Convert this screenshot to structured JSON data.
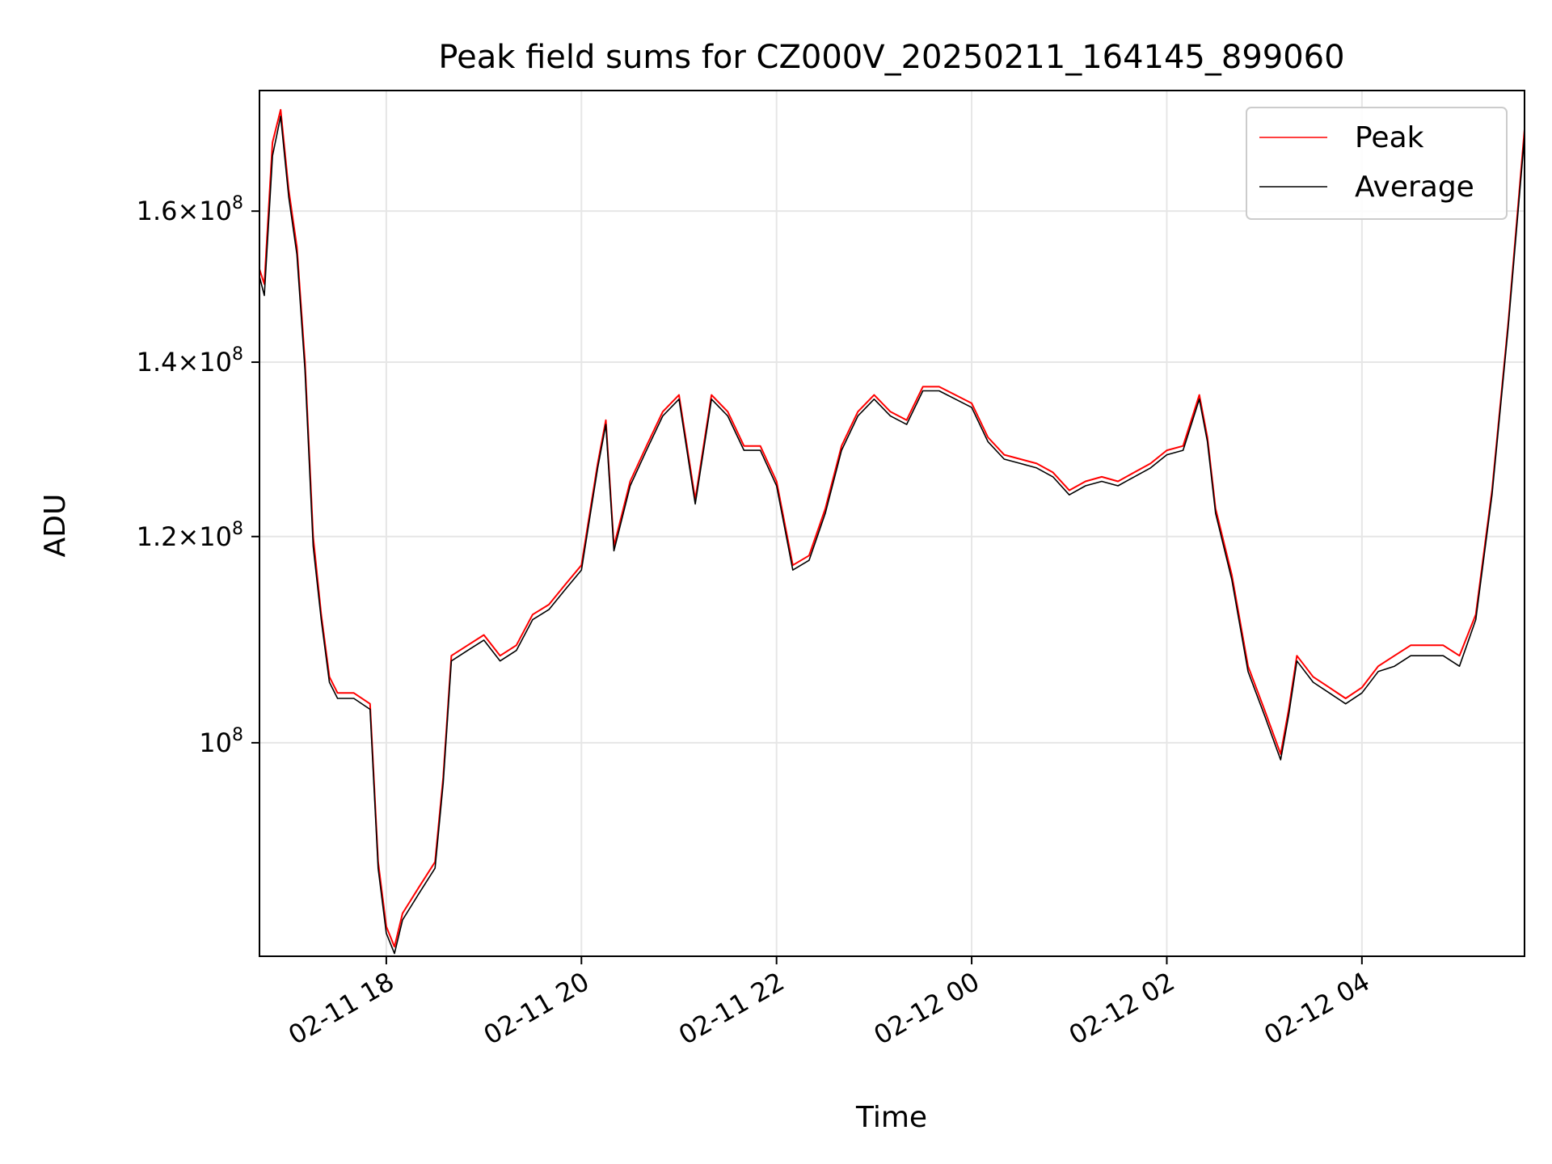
{
  "chart_data": {
    "type": "line",
    "title": "Peak field sums for CZ000V_20250211_164145_899060",
    "xlabel": "Time",
    "ylabel": "ADU",
    "y_scale": "log",
    "ylim": [
      82800000,
      178000000
    ],
    "xlim": [
      "2025-02-11 16:42",
      "2025-02-12 05:40"
    ],
    "grid": true,
    "legend_position": "upper right",
    "x_ticks": [
      {
        "value": "2025-02-11 18:00",
        "label": "02-11 18"
      },
      {
        "value": "2025-02-11 20:00",
        "label": "02-11 20"
      },
      {
        "value": "2025-02-11 22:00",
        "label": "02-11 22"
      },
      {
        "value": "2025-02-12 00:00",
        "label": "02-12 00"
      },
      {
        "value": "2025-02-12 02:00",
        "label": "02-12 02"
      },
      {
        "value": "2025-02-12 04:00",
        "label": "02-12 04"
      }
    ],
    "y_ticks": [
      {
        "value": 100000000,
        "mantissa": "",
        "exponent": "8"
      },
      {
        "value": 120000000,
        "mantissa": "1.2",
        "exponent": "8"
      },
      {
        "value": 140000000,
        "mantissa": "1.4",
        "exponent": "8"
      },
      {
        "value": 160000000,
        "mantissa": "1.6",
        "exponent": "8"
      }
    ],
    "series": [
      {
        "name": "Peak",
        "color": "#ff0000",
        "x": [
          "2025-02-11 16:42",
          "2025-02-11 16:45",
          "2025-02-11 16:50",
          "2025-02-11 16:55",
          "2025-02-11 17:00",
          "2025-02-11 17:05",
          "2025-02-11 17:10",
          "2025-02-11 17:15",
          "2025-02-11 17:20",
          "2025-02-11 17:25",
          "2025-02-11 17:30",
          "2025-02-11 17:40",
          "2025-02-11 17:50",
          "2025-02-11 17:55",
          "2025-02-11 18:00",
          "2025-02-11 18:05",
          "2025-02-11 18:10",
          "2025-02-11 18:20",
          "2025-02-11 18:30",
          "2025-02-11 18:35",
          "2025-02-11 18:40",
          "2025-02-11 18:50",
          "2025-02-11 19:00",
          "2025-02-11 19:10",
          "2025-02-11 19:20",
          "2025-02-11 19:30",
          "2025-02-11 19:40",
          "2025-02-11 19:50",
          "2025-02-11 20:00",
          "2025-02-11 20:10",
          "2025-02-11 20:15",
          "2025-02-11 20:20",
          "2025-02-11 20:30",
          "2025-02-11 20:40",
          "2025-02-11 20:50",
          "2025-02-11 21:00",
          "2025-02-11 21:10",
          "2025-02-11 21:20",
          "2025-02-11 21:30",
          "2025-02-11 21:40",
          "2025-02-11 21:50",
          "2025-02-11 22:00",
          "2025-02-11 22:10",
          "2025-02-11 22:20",
          "2025-02-11 22:30",
          "2025-02-11 22:40",
          "2025-02-11 22:50",
          "2025-02-11 23:00",
          "2025-02-11 23:10",
          "2025-02-11 23:20",
          "2025-02-11 23:30",
          "2025-02-11 23:40",
          "2025-02-11 23:50",
          "2025-02-12 00:00",
          "2025-02-12 00:10",
          "2025-02-12 00:20",
          "2025-02-12 00:30",
          "2025-02-12 00:40",
          "2025-02-12 00:50",
          "2025-02-12 01:00",
          "2025-02-12 01:10",
          "2025-02-12 01:20",
          "2025-02-12 01:30",
          "2025-02-12 01:40",
          "2025-02-12 01:50",
          "2025-02-12 02:00",
          "2025-02-12 02:10",
          "2025-02-12 02:20",
          "2025-02-12 02:25",
          "2025-02-12 02:30",
          "2025-02-12 02:40",
          "2025-02-12 02:50",
          "2025-02-12 03:00",
          "2025-02-12 03:10",
          "2025-02-12 03:15",
          "2025-02-12 03:20",
          "2025-02-12 03:30",
          "2025-02-12 03:40",
          "2025-02-12 03:50",
          "2025-02-12 04:00",
          "2025-02-12 04:10",
          "2025-02-12 04:20",
          "2025-02-12 04:30",
          "2025-02-12 04:40",
          "2025-02-12 04:50",
          "2025-02-12 05:00",
          "2025-02-12 05:10",
          "2025-02-12 05:20",
          "2025-02-12 05:30",
          "2025-02-12 05:40"
        ],
        "y": [
          152000000,
          150000000,
          170000000,
          175000000,
          163000000,
          155000000,
          140000000,
          120000000,
          112000000,
          106000000,
          104500000,
          104500000,
          103500000,
          90000000,
          85000000,
          83500000,
          86000000,
          88000000,
          90000000,
          97000000,
          108000000,
          109000000,
          110000000,
          108000000,
          109000000,
          112000000,
          113000000,
          115000000,
          117000000,
          128000000,
          133000000,
          119000000,
          126000000,
          130000000,
          134000000,
          136000000,
          124000000,
          136000000,
          134000000,
          130000000,
          130000000,
          126000000,
          117000000,
          118000000,
          123000000,
          130000000,
          134000000,
          136000000,
          134000000,
          133000000,
          137000000,
          137000000,
          136000000,
          135000000,
          131000000,
          129000000,
          128500000,
          128000000,
          127000000,
          125000000,
          126000000,
          126500000,
          126000000,
          127000000,
          128000000,
          129500000,
          130000000,
          136000000,
          131000000,
          123000000,
          116000000,
          107000000,
          103000000,
          99000000,
          103000000,
          108000000,
          106000000,
          105000000,
          104000000,
          105000000,
          107000000,
          108000000,
          109000000,
          109000000,
          109000000,
          108000000,
          112000000,
          125000000,
          145000000,
          172000000
        ]
      },
      {
        "name": "Average",
        "color": "#000000",
        "x": [
          "2025-02-11 16:42",
          "2025-02-11 16:45",
          "2025-02-11 16:50",
          "2025-02-11 16:55",
          "2025-02-11 17:00",
          "2025-02-11 17:05",
          "2025-02-11 17:10",
          "2025-02-11 17:15",
          "2025-02-11 17:20",
          "2025-02-11 17:25",
          "2025-02-11 17:30",
          "2025-02-11 17:40",
          "2025-02-11 17:50",
          "2025-02-11 17:55",
          "2025-02-11 18:00",
          "2025-02-11 18:05",
          "2025-02-11 18:10",
          "2025-02-11 18:20",
          "2025-02-11 18:30",
          "2025-02-11 18:35",
          "2025-02-11 18:40",
          "2025-02-11 18:50",
          "2025-02-11 19:00",
          "2025-02-11 19:10",
          "2025-02-11 19:20",
          "2025-02-11 19:30",
          "2025-02-11 19:40",
          "2025-02-11 19:50",
          "2025-02-11 20:00",
          "2025-02-11 20:10",
          "2025-02-11 20:15",
          "2025-02-11 20:20",
          "2025-02-11 20:30",
          "2025-02-11 20:40",
          "2025-02-11 20:50",
          "2025-02-11 21:00",
          "2025-02-11 21:10",
          "2025-02-11 21:20",
          "2025-02-11 21:30",
          "2025-02-11 21:40",
          "2025-02-11 21:50",
          "2025-02-11 22:00",
          "2025-02-11 22:10",
          "2025-02-11 22:20",
          "2025-02-11 22:30",
          "2025-02-11 22:40",
          "2025-02-11 22:50",
          "2025-02-11 23:00",
          "2025-02-11 23:10",
          "2025-02-11 23:20",
          "2025-02-11 23:30",
          "2025-02-11 23:40",
          "2025-02-11 23:50",
          "2025-02-12 00:00",
          "2025-02-12 00:10",
          "2025-02-12 00:20",
          "2025-02-12 00:30",
          "2025-02-12 00:40",
          "2025-02-12 00:50",
          "2025-02-12 01:00",
          "2025-02-12 01:10",
          "2025-02-12 01:20",
          "2025-02-12 01:30",
          "2025-02-12 01:40",
          "2025-02-12 01:50",
          "2025-02-12 02:00",
          "2025-02-12 02:10",
          "2025-02-12 02:20",
          "2025-02-12 02:25",
          "2025-02-12 02:30",
          "2025-02-12 02:40",
          "2025-02-12 02:50",
          "2025-02-12 03:00",
          "2025-02-12 03:10",
          "2025-02-12 03:15",
          "2025-02-12 03:20",
          "2025-02-12 03:30",
          "2025-02-12 03:40",
          "2025-02-12 03:50",
          "2025-02-12 04:00",
          "2025-02-12 04:10",
          "2025-02-12 04:20",
          "2025-02-12 04:30",
          "2025-02-12 04:40",
          "2025-02-12 04:50",
          "2025-02-12 05:00",
          "2025-02-12 05:10",
          "2025-02-12 05:20",
          "2025-02-12 05:30",
          "2025-02-12 05:40"
        ],
        "y": [
          151000000,
          148500000,
          168000000,
          174000000,
          162000000,
          154000000,
          139000000,
          119000000,
          111500000,
          105500000,
          104000000,
          104000000,
          103000000,
          89500000,
          84500000,
          83000000,
          85500000,
          87500000,
          89500000,
          96500000,
          107500000,
          108500000,
          109500000,
          107500000,
          108500000,
          111500000,
          112500000,
          114500000,
          116500000,
          127500000,
          132500000,
          118500000,
          125500000,
          129500000,
          133500000,
          135500000,
          123500000,
          135500000,
          133500000,
          129500000,
          129500000,
          125500000,
          116500000,
          117500000,
          122500000,
          129500000,
          133500000,
          135500000,
          133500000,
          132500000,
          136500000,
          136500000,
          135500000,
          134500000,
          130500000,
          128500000,
          128000000,
          127500000,
          126500000,
          124500000,
          125500000,
          126000000,
          125500000,
          126500000,
          127500000,
          129000000,
          129500000,
          135500000,
          130500000,
          122500000,
          115500000,
          106500000,
          102500000,
          98500000,
          102500000,
          107500000,
          105500000,
          104500000,
          103500000,
          104500000,
          106500000,
          107000000,
          108000000,
          108000000,
          108000000,
          107000000,
          111500000,
          124500000,
          144500000,
          171000000
        ]
      }
    ]
  }
}
